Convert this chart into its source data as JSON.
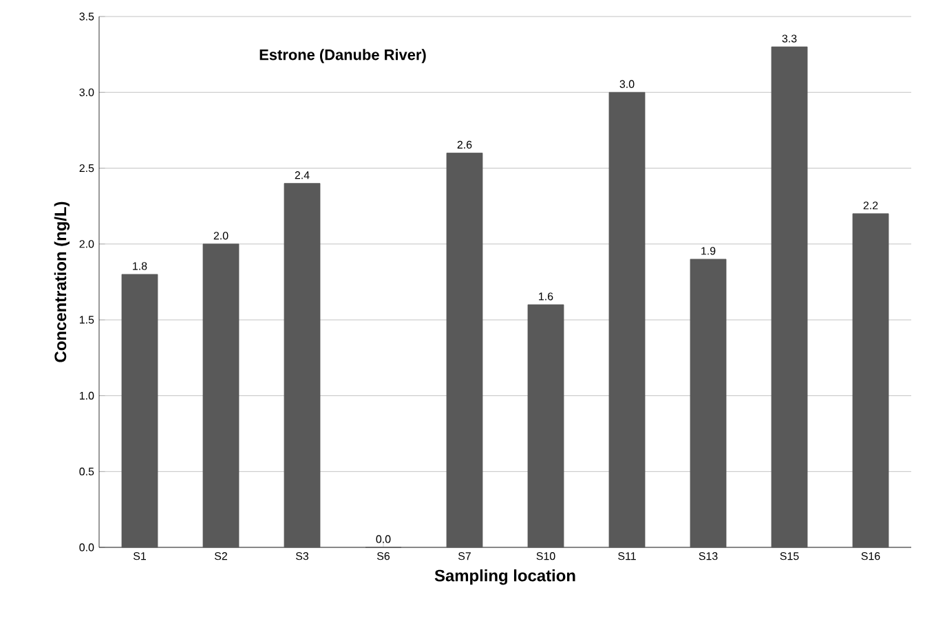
{
  "chart_data": {
    "type": "bar",
    "title": "Estrone (Danube River)",
    "xlabel": "Sampling location",
    "ylabel": "Concentration (ng/L)",
    "categories": [
      "S1",
      "S2",
      "S3",
      "S6",
      "S7",
      "S10",
      "S11",
      "S13",
      "S15",
      "S16"
    ],
    "values": [
      1.8,
      2.0,
      2.4,
      0.0,
      2.6,
      1.6,
      3.0,
      1.9,
      3.3,
      2.2
    ],
    "value_labels": [
      "1.8",
      "2.0",
      "2.4",
      "0.0",
      "2.6",
      "1.6",
      "3.0",
      "1.9",
      "3.3",
      "2.2"
    ],
    "color": "#595959",
    "ylim": [
      0,
      3.5
    ],
    "yticks": [
      {
        "value": 0,
        "label": "0.0"
      },
      {
        "value": 0.5,
        "label": "0.5"
      },
      {
        "value": 1,
        "label": "1.0"
      },
      {
        "value": 1.5,
        "label": "1.5"
      },
      {
        "value": 2,
        "label": "2.0"
      },
      {
        "value": 2.5,
        "label": "2.5"
      },
      {
        "value": 3,
        "label": "3.0"
      },
      {
        "value": 3.5,
        "label": "3.5"
      }
    ],
    "grid": "y"
  }
}
